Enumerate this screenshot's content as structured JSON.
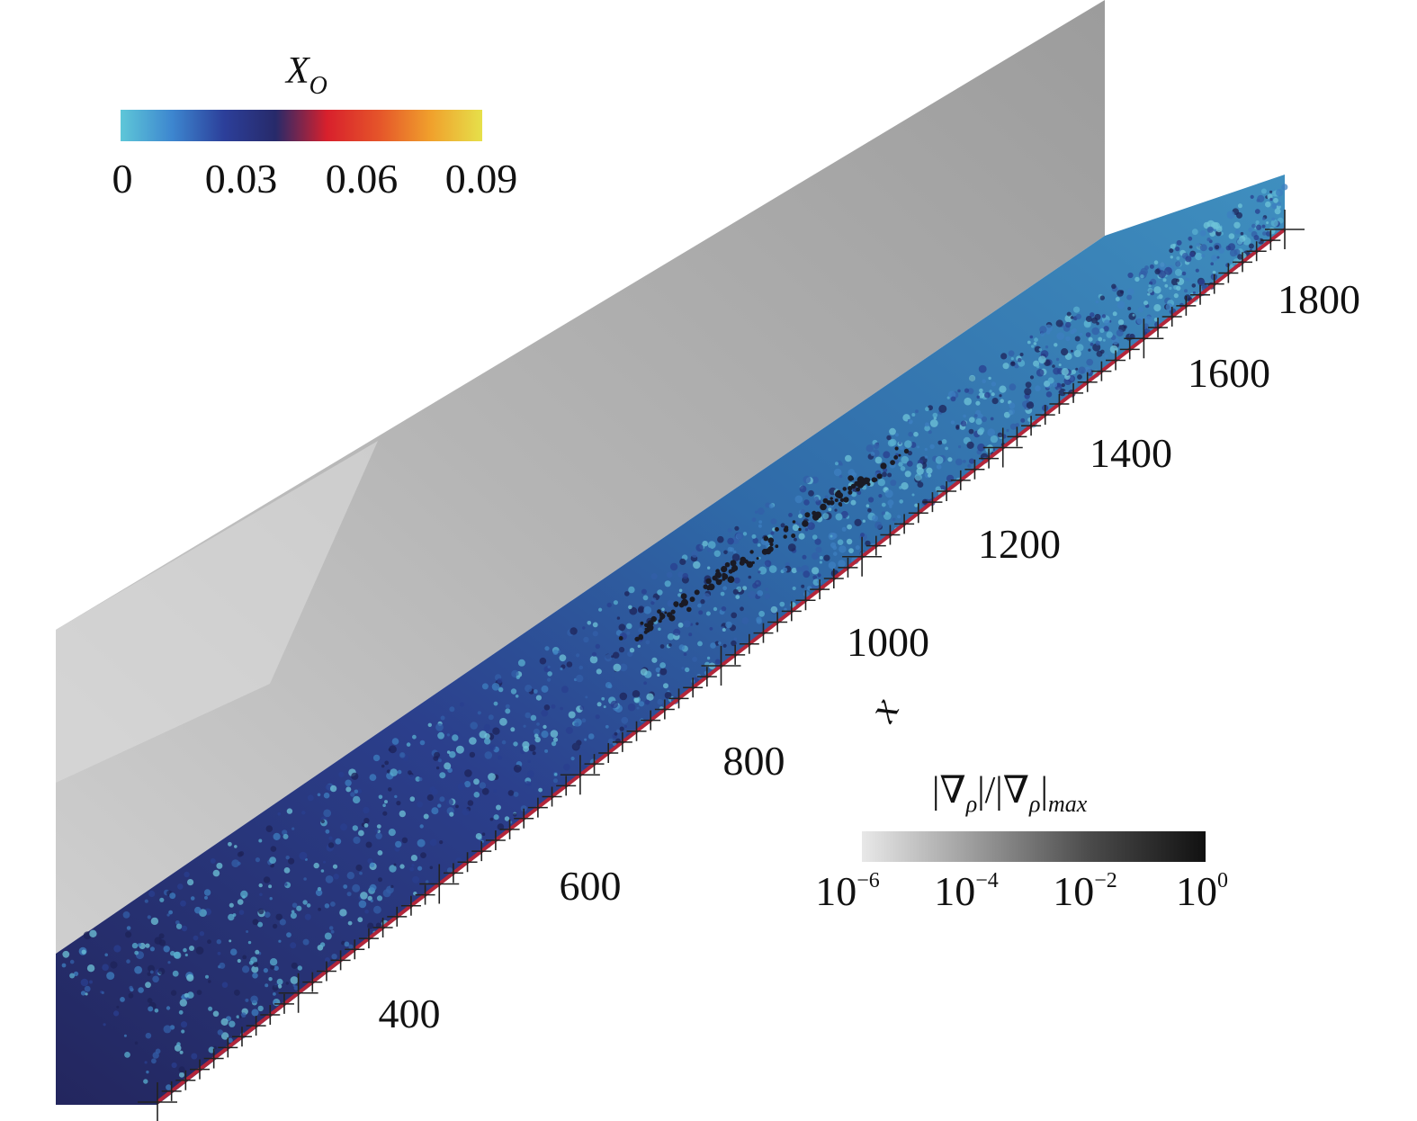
{
  "colorbar_top": {
    "title_main": "X",
    "title_sub": "O",
    "ticks": [
      "0",
      "0.03",
      "0.06",
      "0.09"
    ],
    "colors": [
      "#5ec7d8",
      "#3d86cf",
      "#2c3f9a",
      "#272a6a",
      "#d8202c",
      "#e5542a",
      "#f0a02c",
      "#e6e04a"
    ]
  },
  "colorbar_bottom": {
    "title_parts": [
      "|∇",
      "ρ",
      "|/|∇",
      "ρ",
      "|",
      "max"
    ],
    "ticks": [
      {
        "base": "10",
        "exp": "−6"
      },
      {
        "base": "10",
        "exp": "−4"
      },
      {
        "base": "10",
        "exp": "−2"
      },
      {
        "base": "10",
        "exp": "0"
      }
    ],
    "colors": [
      "#e8e8e8",
      "#9a9a9a",
      "#4a4a4a",
      "#111111"
    ]
  },
  "axis": {
    "label": "x",
    "ticks": [
      "400",
      "600",
      "800",
      "1000",
      "1200",
      "1400",
      "1600",
      "1800"
    ]
  }
}
